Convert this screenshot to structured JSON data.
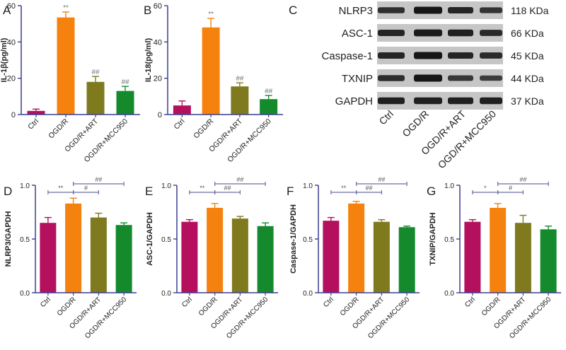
{
  "colors": {
    "Ctrl": "#b4105e",
    "OGD/R": "#f5820f",
    "OGD/R+ART": "#7f7a1e",
    "OGD/R+MCC950": "#158a2c",
    "axis": "#3b3f8f",
    "sig": "#6a6ea0",
    "band": "#161616",
    "blotbg": "#c6c6c6"
  },
  "chart_data": [
    {
      "panel": "A",
      "type": "bar",
      "ylabel": "IL-1β(pg/ml)",
      "categories": [
        "Ctrl",
        "OGD/R",
        "OGD/R+ART",
        "OGD/R+MCC950"
      ],
      "values": [
        2,
        53.5,
        18,
        13
      ],
      "errors": [
        1,
        3,
        3,
        2.5
      ],
      "ylim": [
        0,
        60
      ],
      "ticks": [
        0,
        20,
        40,
        60
      ],
      "ticklabels": [
        "0",
        "20",
        "40",
        "60"
      ],
      "marks": [
        "",
        "**",
        "##",
        "##"
      ],
      "brackets": []
    },
    {
      "panel": "B",
      "type": "bar",
      "ylabel": "IL-18(pg/ml)",
      "categories": [
        "Ctrl",
        "OGD/R",
        "OGD/R+ART",
        "OGD/R+MCC950"
      ],
      "values": [
        5,
        48,
        15.5,
        8.5
      ],
      "errors": [
        2.5,
        5,
        2,
        2
      ],
      "ylim": [
        0,
        60
      ],
      "ticks": [
        0,
        20,
        40,
        60
      ],
      "ticklabels": [
        "0",
        "20",
        "40",
        "60"
      ],
      "marks": [
        "",
        "**",
        "##",
        "##"
      ],
      "brackets": []
    },
    {
      "panel": "D",
      "type": "bar",
      "ylabel": "NLRP3/GAPDH",
      "categories": [
        "Ctrl",
        "OGD/R",
        "OGD/R+ART",
        "OGD/R+MCC950"
      ],
      "values": [
        0.65,
        0.83,
        0.7,
        0.63
      ],
      "errors": [
        0.05,
        0.05,
        0.04,
        0.02
      ],
      "ylim": [
        0,
        1.0
      ],
      "ticks": [
        0,
        0.5,
        1.0
      ],
      "ticklabels": [
        "0.0",
        "0.5",
        "1.0"
      ],
      "marks": [],
      "brackets": [
        {
          "from": 0,
          "to": 1,
          "label": "**",
          "level": 0
        },
        {
          "from": 1,
          "to": 2,
          "label": "#",
          "level": 0
        },
        {
          "from": 1,
          "to": 3,
          "label": "##",
          "level": 1
        }
      ]
    },
    {
      "panel": "E",
      "type": "bar",
      "ylabel": "ASC-1/GAPDH",
      "categories": [
        "Ctrl",
        "OGD/R",
        "OGD/R+ART",
        "OGD/R+MCC950"
      ],
      "values": [
        0.66,
        0.79,
        0.69,
        0.62
      ],
      "errors": [
        0.02,
        0.04,
        0.02,
        0.03
      ],
      "ylim": [
        0,
        1.0
      ],
      "ticks": [
        0,
        0.5,
        1.0
      ],
      "ticklabels": [
        "0.0",
        "0.5",
        "1.0"
      ],
      "marks": [],
      "brackets": [
        {
          "from": 0,
          "to": 1,
          "label": "**",
          "level": 0
        },
        {
          "from": 1,
          "to": 2,
          "label": "##",
          "level": 0
        },
        {
          "from": 1,
          "to": 3,
          "label": "##",
          "level": 1
        }
      ]
    },
    {
      "panel": "F",
      "type": "bar",
      "ylabel": "Caspase-1/GAPDH",
      "categories": [
        "Ctrl",
        "OGD/R",
        "OGD/R+ART",
        "OGD/R+MCC950"
      ],
      "values": [
        0.67,
        0.83,
        0.66,
        0.61
      ],
      "errors": [
        0.03,
        0.02,
        0.02,
        0.01
      ],
      "ylim": [
        0,
        1.0
      ],
      "ticks": [
        0,
        0.5,
        1.0
      ],
      "ticklabels": [
        "0.0",
        "0.5",
        "1.0"
      ],
      "marks": [],
      "brackets": [
        {
          "from": 0,
          "to": 1,
          "label": "**",
          "level": 0
        },
        {
          "from": 1,
          "to": 2,
          "label": "##",
          "level": 0
        },
        {
          "from": 1,
          "to": 3,
          "label": "##",
          "level": 1
        }
      ]
    },
    {
      "panel": "G",
      "type": "bar",
      "ylabel": "TXNIP/GAPDH",
      "categories": [
        "Ctrl",
        "OGD/R",
        "OGD/R+ART",
        "OGD/R+MCC950"
      ],
      "values": [
        0.66,
        0.79,
        0.65,
        0.59
      ],
      "errors": [
        0.02,
        0.04,
        0.07,
        0.03
      ],
      "ylim": [
        0,
        1.0
      ],
      "ticks": [
        0,
        0.5,
        1.0
      ],
      "ticklabels": [
        "0.0",
        "0.5",
        "1.0"
      ],
      "marks": [],
      "brackets": [
        {
          "from": 0,
          "to": 1,
          "label": "*",
          "level": 0
        },
        {
          "from": 1,
          "to": 2,
          "label": "#",
          "level": 0
        },
        {
          "from": 1,
          "to": 3,
          "label": "##",
          "level": 1
        }
      ]
    }
  ],
  "blot": {
    "panel": "C",
    "proteins": [
      "NLRP3",
      "ASC-1",
      "Caspase-1",
      "TXNIP",
      "GAPDH"
    ],
    "sizes": [
      "118 KDa",
      "66 KDa",
      "45 KDa",
      "44 KDa",
      "37 KDa"
    ],
    "lanes": [
      "Ctrl",
      "OGD/R",
      "OGD/R+ART",
      "OGD/R+MCC950"
    ],
    "intensity": [
      [
        0.75,
        1.0,
        0.85,
        0.7
      ],
      [
        0.85,
        0.95,
        0.9,
        0.8
      ],
      [
        0.85,
        1.0,
        0.85,
        0.8
      ],
      [
        0.75,
        1.0,
        0.65,
        0.6
      ],
      [
        0.9,
        0.9,
        0.9,
        0.9
      ]
    ]
  }
}
